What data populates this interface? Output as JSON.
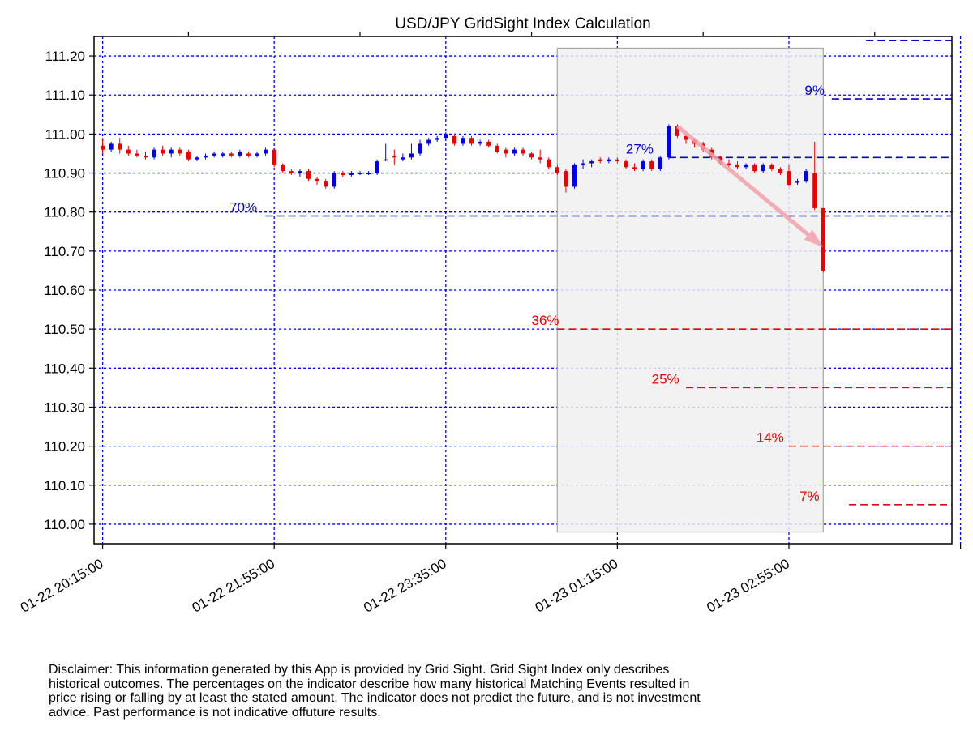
{
  "chart_data": {
    "type": "candlestick",
    "title": "USD/JPY GridSight Index Calculation",
    "xlabel": "",
    "ylabel": "",
    "ylim": [
      109.95,
      111.25
    ],
    "y_ticks": [
      "110.00",
      "110.10",
      "110.20",
      "110.30",
      "110.40",
      "110.50",
      "110.60",
      "110.70",
      "110.80",
      "110.90",
      "111.00",
      "111.10",
      "111.20"
    ],
    "x_range": [
      "01-22 20:10",
      "01-23 04:30"
    ],
    "x_ticks": [
      {
        "t": "01-22 20:15",
        "label": "01-22 20:15:00"
      },
      {
        "t": "01-22 21:55",
        "label": "01-22 21:55:00"
      },
      {
        "t": "01-22 23:35",
        "label": "01-22 23:35:00"
      },
      {
        "t": "01-23 01:15",
        "label": "01-23 01:15:00"
      },
      {
        "t": "01-23 02:55",
        "label": "01-23 02:55:00"
      },
      {
        "t": "01-23 04:35",
        "label": ""
      }
    ],
    "grid": true,
    "colors": {
      "up": "#0000ee",
      "down": "#ee0000",
      "shade": "#f0f0f0",
      "arrow": "#f2a0aa"
    },
    "shaded_window": {
      "from": "01-23 00:40",
      "to": "01-23 03:15",
      "ymin": 109.98,
      "ymax": 111.22
    },
    "candles": [
      {
        "t": "01-22 20:15",
        "o": 110.97,
        "h": 110.99,
        "l": 110.95,
        "c": 110.96
      },
      {
        "t": "01-22 20:20",
        "o": 110.96,
        "h": 110.98,
        "l": 110.955,
        "c": 110.975
      },
      {
        "t": "01-22 20:25",
        "o": 110.975,
        "h": 110.99,
        "l": 110.95,
        "c": 110.96
      },
      {
        "t": "01-22 20:30",
        "o": 110.96,
        "h": 110.97,
        "l": 110.945,
        "c": 110.95
      },
      {
        "t": "01-22 20:35",
        "o": 110.95,
        "h": 110.96,
        "l": 110.94,
        "c": 110.945
      },
      {
        "t": "01-22 20:40",
        "o": 110.945,
        "h": 110.955,
        "l": 110.935,
        "c": 110.94
      },
      {
        "t": "01-22 20:45",
        "o": 110.94,
        "h": 110.965,
        "l": 110.935,
        "c": 110.96
      },
      {
        "t": "01-22 20:50",
        "o": 110.96,
        "h": 110.97,
        "l": 110.945,
        "c": 110.95
      },
      {
        "t": "01-22 20:55",
        "o": 110.95,
        "h": 110.965,
        "l": 110.94,
        "c": 110.96
      },
      {
        "t": "01-22 21:00",
        "o": 110.96,
        "h": 110.965,
        "l": 110.945,
        "c": 110.95
      },
      {
        "t": "01-22 21:05",
        "o": 110.955,
        "h": 110.96,
        "l": 110.93,
        "c": 110.935
      },
      {
        "t": "01-22 21:10",
        "o": 110.935,
        "h": 110.945,
        "l": 110.93,
        "c": 110.94
      },
      {
        "t": "01-22 21:15",
        "o": 110.94,
        "h": 110.95,
        "l": 110.935,
        "c": 110.945
      },
      {
        "t": "01-22 21:20",
        "o": 110.945,
        "h": 110.955,
        "l": 110.94,
        "c": 110.95
      },
      {
        "t": "01-22 21:25",
        "o": 110.945,
        "h": 110.955,
        "l": 110.94,
        "c": 110.95
      },
      {
        "t": "01-22 21:30",
        "o": 110.95,
        "h": 110.955,
        "l": 110.94,
        "c": 110.945
      },
      {
        "t": "01-22 21:35",
        "o": 110.945,
        "h": 110.96,
        "l": 110.94,
        "c": 110.955
      },
      {
        "t": "01-22 21:40",
        "o": 110.95,
        "h": 110.955,
        "l": 110.94,
        "c": 110.945
      },
      {
        "t": "01-22 21:45",
        "o": 110.945,
        "h": 110.955,
        "l": 110.94,
        "c": 110.95
      },
      {
        "t": "01-22 21:50",
        "o": 110.95,
        "h": 110.965,
        "l": 110.945,
        "c": 110.96
      },
      {
        "t": "01-22 21:55",
        "o": 110.96,
        "h": 110.96,
        "l": 110.915,
        "c": 110.92
      },
      {
        "t": "01-22 22:00",
        "o": 110.92,
        "h": 110.925,
        "l": 110.9,
        "c": 110.905
      },
      {
        "t": "01-22 22:05",
        "o": 110.905,
        "h": 110.91,
        "l": 110.895,
        "c": 110.9
      },
      {
        "t": "01-22 22:10",
        "o": 110.9,
        "h": 110.91,
        "l": 110.89,
        "c": 110.905
      },
      {
        "t": "01-22 22:15",
        "o": 110.905,
        "h": 110.91,
        "l": 110.88,
        "c": 110.885
      },
      {
        "t": "01-22 22:20",
        "o": 110.885,
        "h": 110.89,
        "l": 110.87,
        "c": 110.88
      },
      {
        "t": "01-22 22:25",
        "o": 110.88,
        "h": 110.885,
        "l": 110.86,
        "c": 110.865
      },
      {
        "t": "01-22 22:30",
        "o": 110.865,
        "h": 110.905,
        "l": 110.86,
        "c": 110.9
      },
      {
        "t": "01-22 22:35",
        "o": 110.9,
        "h": 110.905,
        "l": 110.89,
        "c": 110.895
      },
      {
        "t": "01-22 22:40",
        "o": 110.895,
        "h": 110.905,
        "l": 110.89,
        "c": 110.9
      },
      {
        "t": "01-22 22:45",
        "o": 110.9,
        "h": 110.905,
        "l": 110.895,
        "c": 110.9
      },
      {
        "t": "01-22 22:50",
        "o": 110.9,
        "h": 110.905,
        "l": 110.895,
        "c": 110.9
      },
      {
        "t": "01-22 22:55",
        "o": 110.9,
        "h": 110.935,
        "l": 110.895,
        "c": 110.93
      },
      {
        "t": "01-22 23:00",
        "o": 110.935,
        "h": 110.975,
        "l": 110.93,
        "c": 110.935
      },
      {
        "t": "01-22 23:05",
        "o": 110.945,
        "h": 110.96,
        "l": 110.92,
        "c": 110.94
      },
      {
        "t": "01-22 23:10",
        "o": 110.935,
        "h": 110.95,
        "l": 110.93,
        "c": 110.94
      },
      {
        "t": "01-22 23:15",
        "o": 110.94,
        "h": 110.975,
        "l": 110.935,
        "c": 110.95
      },
      {
        "t": "01-22 23:20",
        "o": 110.95,
        "h": 110.985,
        "l": 110.945,
        "c": 110.975
      },
      {
        "t": "01-22 23:25",
        "o": 110.975,
        "h": 110.99,
        "l": 110.97,
        "c": 110.985
      },
      {
        "t": "01-22 23:30",
        "o": 110.985,
        "h": 110.995,
        "l": 110.98,
        "c": 110.99
      },
      {
        "t": "01-22 23:35",
        "o": 110.99,
        "h": 111.005,
        "l": 110.985,
        "c": 111.0
      },
      {
        "t": "01-22 23:40",
        "o": 110.995,
        "h": 111.0,
        "l": 110.97,
        "c": 110.975
      },
      {
        "t": "01-22 23:45",
        "o": 110.975,
        "h": 110.995,
        "l": 110.97,
        "c": 110.99
      },
      {
        "t": "01-22 23:50",
        "o": 110.99,
        "h": 110.995,
        "l": 110.97,
        "c": 110.975
      },
      {
        "t": "01-22 23:55",
        "o": 110.975,
        "h": 110.985,
        "l": 110.97,
        "c": 110.98
      },
      {
        "t": "01-23 00:00",
        "o": 110.98,
        "h": 110.985,
        "l": 110.965,
        "c": 110.97
      },
      {
        "t": "01-23 00:05",
        "o": 110.97,
        "h": 110.975,
        "l": 110.95,
        "c": 110.955
      },
      {
        "t": "01-23 00:10",
        "o": 110.96,
        "h": 110.965,
        "l": 110.94,
        "c": 110.95
      },
      {
        "t": "01-23 00:15",
        "o": 110.95,
        "h": 110.965,
        "l": 110.945,
        "c": 110.96
      },
      {
        "t": "01-23 00:20",
        "o": 110.96,
        "h": 110.965,
        "l": 110.945,
        "c": 110.95
      },
      {
        "t": "01-23 00:25",
        "o": 110.95,
        "h": 110.955,
        "l": 110.935,
        "c": 110.94
      },
      {
        "t": "01-23 00:30",
        "o": 110.94,
        "h": 110.96,
        "l": 110.925,
        "c": 110.935
      },
      {
        "t": "01-23 00:35",
        "o": 110.935,
        "h": 110.94,
        "l": 110.91,
        "c": 110.915
      },
      {
        "t": "01-23 00:40",
        "o": 110.915,
        "h": 110.92,
        "l": 110.895,
        "c": 110.9
      },
      {
        "t": "01-23 00:45",
        "o": 110.905,
        "h": 110.91,
        "l": 110.85,
        "c": 110.865
      },
      {
        "t": "01-23 00:50",
        "o": 110.865,
        "h": 110.925,
        "l": 110.86,
        "c": 110.92
      },
      {
        "t": "01-23 00:55",
        "o": 110.92,
        "h": 110.935,
        "l": 110.91,
        "c": 110.925
      },
      {
        "t": "01-23 01:00",
        "o": 110.925,
        "h": 110.935,
        "l": 110.915,
        "c": 110.93
      },
      {
        "t": "01-23 01:05",
        "o": 110.935,
        "h": 110.94,
        "l": 110.925,
        "c": 110.93
      },
      {
        "t": "01-23 01:10",
        "o": 110.93,
        "h": 110.94,
        "l": 110.925,
        "c": 110.935
      },
      {
        "t": "01-23 01:15",
        "o": 110.935,
        "h": 110.94,
        "l": 110.925,
        "c": 110.93
      },
      {
        "t": "01-23 01:20",
        "o": 110.93,
        "h": 110.935,
        "l": 110.91,
        "c": 110.915
      },
      {
        "t": "01-23 01:25",
        "o": 110.915,
        "h": 110.925,
        "l": 110.905,
        "c": 110.91
      },
      {
        "t": "01-23 01:30",
        "o": 110.91,
        "h": 110.935,
        "l": 110.905,
        "c": 110.93
      },
      {
        "t": "01-23 01:35",
        "o": 110.93,
        "h": 110.935,
        "l": 110.905,
        "c": 110.91
      },
      {
        "t": "01-23 01:40",
        "o": 110.91,
        "h": 110.945,
        "l": 110.905,
        "c": 110.94
      },
      {
        "t": "01-23 01:45",
        "o": 110.94,
        "h": 111.025,
        "l": 110.935,
        "c": 111.02
      },
      {
        "t": "01-23 01:50",
        "o": 111.02,
        "h": 111.025,
        "l": 110.99,
        "c": 110.995
      },
      {
        "t": "01-23 01:55",
        "o": 110.995,
        "h": 111.0,
        "l": 110.975,
        "c": 110.985
      },
      {
        "t": "01-23 02:00",
        "o": 110.985,
        "h": 110.99,
        "l": 110.965,
        "c": 110.975
      },
      {
        "t": "01-23 02:05",
        "o": 110.975,
        "h": 110.98,
        "l": 110.955,
        "c": 110.96
      },
      {
        "t": "01-23 02:10",
        "o": 110.96,
        "h": 110.965,
        "l": 110.935,
        "c": 110.94
      },
      {
        "t": "01-23 02:15",
        "o": 110.94,
        "h": 110.945,
        "l": 110.92,
        "c": 110.925
      },
      {
        "t": "01-23 02:20",
        "o": 110.925,
        "h": 110.935,
        "l": 110.915,
        "c": 110.92
      },
      {
        "t": "01-23 02:25",
        "o": 110.92,
        "h": 110.93,
        "l": 110.91,
        "c": 110.915
      },
      {
        "t": "01-23 02:30",
        "o": 110.915,
        "h": 110.925,
        "l": 110.91,
        "c": 110.92
      },
      {
        "t": "01-23 02:35",
        "o": 110.92,
        "h": 110.925,
        "l": 110.9,
        "c": 110.905
      },
      {
        "t": "01-23 02:40",
        "o": 110.905,
        "h": 110.925,
        "l": 110.9,
        "c": 110.92
      },
      {
        "t": "01-23 02:45",
        "o": 110.92,
        "h": 110.925,
        "l": 110.905,
        "c": 110.91
      },
      {
        "t": "01-23 02:50",
        "o": 110.91,
        "h": 110.915,
        "l": 110.895,
        "c": 110.9
      },
      {
        "t": "01-23 02:55",
        "o": 110.905,
        "h": 110.92,
        "l": 110.865,
        "c": 110.87
      },
      {
        "t": "01-23 03:00",
        "o": 110.875,
        "h": 110.885,
        "l": 110.87,
        "c": 110.88
      },
      {
        "t": "01-23 03:05",
        "o": 110.88,
        "h": 110.91,
        "l": 110.875,
        "c": 110.905
      },
      {
        "t": "01-23 03:10",
        "o": 110.9,
        "h": 110.98,
        "l": 110.805,
        "c": 110.81
      },
      {
        "t": "01-23 03:15",
        "o": 110.81,
        "h": 110.81,
        "l": 110.645,
        "c": 110.65
      }
    ],
    "probability_levels": [
      {
        "label": "9%",
        "price": 111.09,
        "direction": "up",
        "label_t": "01-23 03:10",
        "start_t": "01-23 03:20"
      },
      {
        "label": "27%",
        "price": 110.94,
        "direction": "up",
        "label_t": "01-23 01:28",
        "start_t": "01-23 01:45"
      },
      {
        "label": "70%",
        "price": 110.79,
        "direction": "up",
        "label_t": "01-22 21:37",
        "start_t": "01-22 21:50"
      },
      {
        "label": "36%",
        "price": 110.5,
        "direction": "down",
        "label_t": "01-23 00:33",
        "start_t": "01-23 00:40"
      },
      {
        "label": "25%",
        "price": 110.35,
        "direction": "down",
        "label_t": "01-23 01:43",
        "start_t": "01-23 01:55"
      },
      {
        "label": "14%",
        "price": 110.2,
        "direction": "down",
        "label_t": "01-23 02:44",
        "start_t": "01-23 02:55"
      },
      {
        "label": "7%",
        "price": 110.05,
        "direction": "down",
        "label_t": "01-23 03:07",
        "start_t": "01-23 03:30"
      }
    ],
    "extra_levels": [
      {
        "price": 111.24,
        "direction": "up",
        "start_t": "01-23 03:40"
      }
    ],
    "trend_arrow": {
      "from": {
        "t": "01-23 01:50",
        "price": 111.02
      },
      "to": {
        "t": "01-23 03:15",
        "price": 110.71
      }
    }
  },
  "disclaimer": "Disclaimer: This information generated by this App is provided by Grid Sight. Grid Sight Index only describes historical outcomes. The percentages on the indicator describe how many historical Matching Events resulted in price rising or falling by at least the stated amount. The indicator does not predict the future, and is not investment advice. Past performance is not indicative offuture results."
}
